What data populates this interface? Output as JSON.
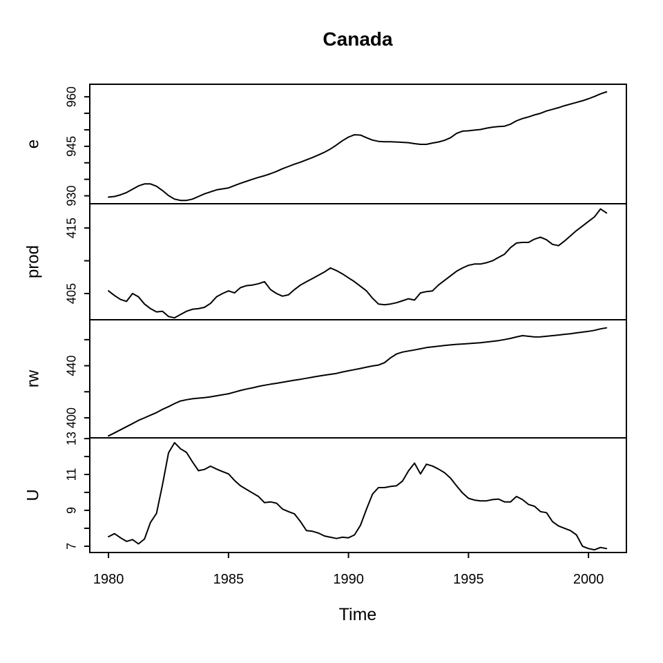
{
  "title": "Canada",
  "chart_data": {
    "type": "line",
    "title": "Canada",
    "xlabel": "Time",
    "line_color": "#000000",
    "background": "#ffffff",
    "grid": false,
    "legend": "none",
    "x_start": 1980,
    "x_step": 0.25,
    "frequency": "quarterly",
    "x_range": [
      1979.22,
      2001.58
    ],
    "x_ticks": [
      1980,
      1985,
      1990,
      1995,
      2000
    ],
    "panels": [
      {
        "name": "e",
        "ylim": [
          927.6,
          963.8
        ],
        "ticks": [
          930,
          935,
          940,
          945,
          950,
          955,
          960
        ],
        "labeled_ticks": [
          930,
          945,
          960
        ],
        "values": [
          929.6,
          929.8,
          930.3,
          931.0,
          932.0,
          933.0,
          933.6,
          933.6,
          932.9,
          931.6,
          930.1,
          929.0,
          928.6,
          928.6,
          929.0,
          929.8,
          930.6,
          931.2,
          931.8,
          932.1,
          932.4,
          933.1,
          933.8,
          934.4,
          935.0,
          935.6,
          936.1,
          936.7,
          937.4,
          938.2,
          938.9,
          939.6,
          940.2,
          940.9,
          941.6,
          942.4,
          943.2,
          944.2,
          945.4,
          946.7,
          947.8,
          948.5,
          948.4,
          947.6,
          946.9,
          946.5,
          946.4,
          946.4,
          946.3,
          946.2,
          946.1,
          945.8,
          945.6,
          945.6,
          946.0,
          946.3,
          946.8,
          947.6,
          948.9,
          949.6,
          949.7,
          949.9,
          950.1,
          950.5,
          950.8,
          951.0,
          951.1,
          951.7,
          952.7,
          953.4,
          953.9,
          954.5,
          955.0,
          955.7,
          956.2,
          956.7,
          957.3,
          957.8,
          958.3,
          958.8,
          959.4,
          960.1,
          960.9,
          961.5
        ]
      },
      {
        "name": "prod",
        "ylim": [
          401.0,
          418.7
        ],
        "ticks": [
          405,
          410,
          415
        ],
        "labeled_ticks": [
          405,
          415
        ],
        "values": [
          405.4,
          404.7,
          404.1,
          403.8,
          405.0,
          404.5,
          403.4,
          402.7,
          402.2,
          402.3,
          401.5,
          401.3,
          401.8,
          402.3,
          402.6,
          402.7,
          402.9,
          403.5,
          404.5,
          405.0,
          405.4,
          405.1,
          405.9,
          406.2,
          406.3,
          406.5,
          406.8,
          405.6,
          405.0,
          404.6,
          404.8,
          405.6,
          406.3,
          406.8,
          407.3,
          407.8,
          408.3,
          408.9,
          408.5,
          408.0,
          407.4,
          406.8,
          406.1,
          405.4,
          404.3,
          403.4,
          403.3,
          403.4,
          403.6,
          403.9,
          404.2,
          404.0,
          405.1,
          405.3,
          405.4,
          406.3,
          407.0,
          407.7,
          408.4,
          408.9,
          409.3,
          409.5,
          409.5,
          409.7,
          410.0,
          410.5,
          411.0,
          412.0,
          412.7,
          412.8,
          412.8,
          413.3,
          413.6,
          413.2,
          412.5,
          412.3,
          413.0,
          413.8,
          414.6,
          415.3,
          416.0,
          416.7,
          417.9,
          417.3
        ]
      },
      {
        "name": "rw",
        "ylim": [
          384.6,
          475.3
        ],
        "ticks": [
          400,
          420,
          440,
          460
        ],
        "labeled_ticks": [
          400,
          440
        ],
        "values": [
          386.1,
          388.4,
          390.8,
          393.2,
          395.6,
          398.0,
          400.0,
          402.0,
          404.0,
          406.5,
          408.6,
          410.9,
          412.9,
          413.9,
          414.6,
          415.1,
          415.5,
          416.1,
          416.9,
          417.7,
          418.5,
          419.7,
          421.0,
          422.1,
          423.0,
          424.1,
          425.0,
          425.8,
          426.5,
          427.3,
          428.1,
          428.9,
          429.6,
          430.4,
          431.2,
          432.0,
          432.7,
          433.4,
          434.1,
          435.2,
          436.1,
          437.0,
          437.9,
          438.9,
          439.8,
          440.5,
          442.3,
          446.0,
          449.0,
          450.5,
          451.3,
          452.1,
          453.0,
          453.9,
          454.5,
          455.0,
          455.5,
          456.0,
          456.4,
          456.7,
          457.0,
          457.3,
          457.7,
          458.2,
          458.7,
          459.3,
          460.1,
          461.0,
          462.1,
          463.1,
          462.6,
          462.1,
          462.2,
          462.6,
          463.1,
          463.6,
          464.1,
          464.6,
          465.2,
          465.8,
          466.4,
          467.2,
          468.3,
          469.1
        ]
      },
      {
        "name": "U",
        "ylim": [
          6.65,
          13.04
        ],
        "ticks": [
          7,
          8,
          9,
          10,
          11,
          12,
          13
        ],
        "labeled_ticks": [
          7,
          9,
          11,
          13
        ],
        "values": [
          7.53,
          7.7,
          7.47,
          7.27,
          7.37,
          7.13,
          7.4,
          8.33,
          8.83,
          10.43,
          12.2,
          12.77,
          12.43,
          12.23,
          11.7,
          11.21,
          11.28,
          11.46,
          11.3,
          11.16,
          11.03,
          10.67,
          10.37,
          10.17,
          9.97,
          9.77,
          9.43,
          9.47,
          9.4,
          9.07,
          8.93,
          8.8,
          8.37,
          7.87,
          7.83,
          7.73,
          7.57,
          7.5,
          7.43,
          7.5,
          7.47,
          7.63,
          8.17,
          9.07,
          9.9,
          10.27,
          10.27,
          10.33,
          10.37,
          10.63,
          11.2,
          11.63,
          11.03,
          11.57,
          11.47,
          11.3,
          11.1,
          10.8,
          10.37,
          9.97,
          9.67,
          9.57,
          9.53,
          9.53,
          9.6,
          9.63,
          9.47,
          9.47,
          9.77,
          9.6,
          9.33,
          9.23,
          8.93,
          8.87,
          8.37,
          8.13,
          8.0,
          7.87,
          7.63,
          7.0,
          6.87,
          6.8,
          6.93,
          6.87
        ]
      }
    ]
  }
}
